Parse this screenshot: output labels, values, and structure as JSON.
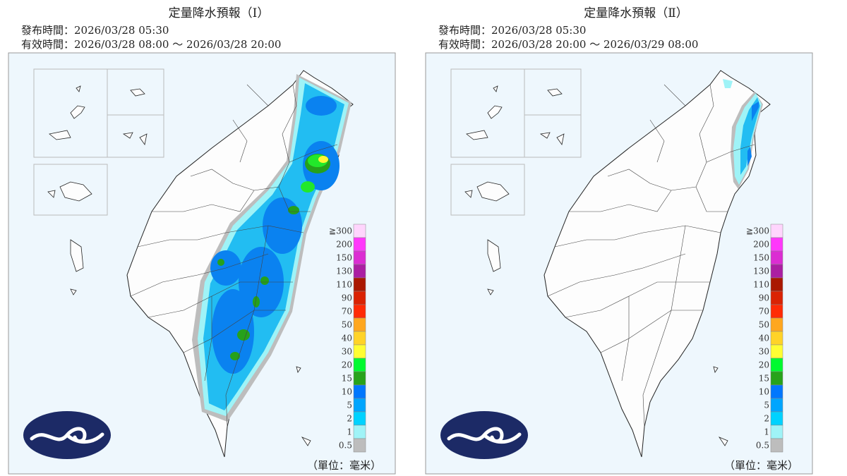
{
  "panels": [
    {
      "title": "定量降水預報（Ⅰ）",
      "issued": "發布時間：2026/03/28 05:30",
      "valid": "有效時間：2026/03/28 08:00 ～ 2026/03/28 20:00"
    },
    {
      "title": "定量降水預報（Ⅱ）",
      "issued": "發布時間：2026/03/28 05:30",
      "valid": "有效時間：2026/03/28 20:00 ～ 2026/03/29 08:00"
    }
  ],
  "legend": {
    "labels": [
      "≧300",
      "200",
      "150",
      "130",
      "110",
      "90",
      "70",
      "50",
      "40",
      "30",
      "20",
      "15",
      "10",
      "5",
      "2",
      "1",
      "0.5"
    ],
    "colors": [
      "#ffd5fd",
      "#ff38fb",
      "#db2dd2",
      "#ab1fa2",
      "#aa1801",
      "#da2304",
      "#ff2b06",
      "#ffa71f",
      "#ffd328",
      "#fffe33",
      "#00fa2f",
      "#27a31b",
      "#0177fd",
      "#00a5fe",
      "#00d2ff",
      "#9ff3f7",
      "#bdbdbd"
    ]
  },
  "unit": "（單位：毫米）"
}
